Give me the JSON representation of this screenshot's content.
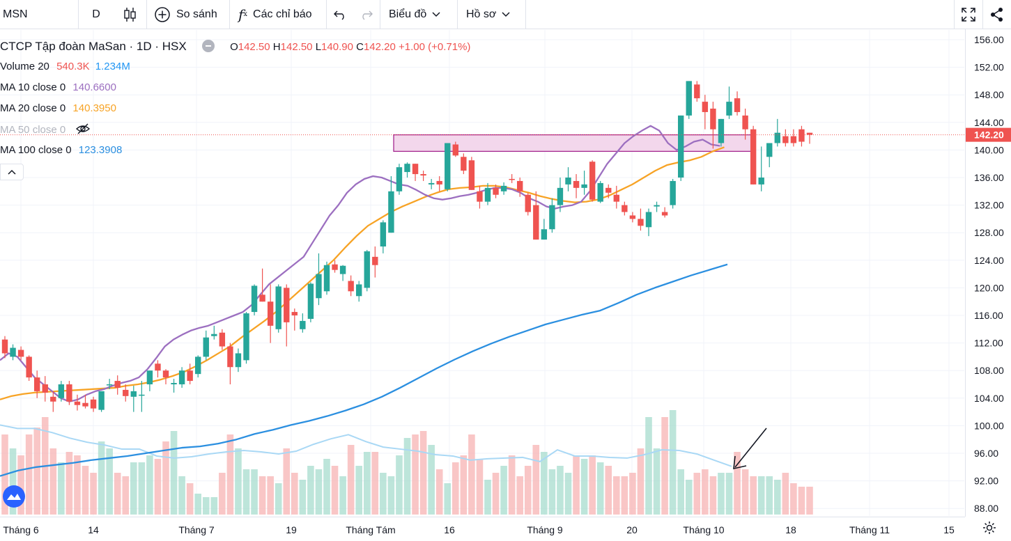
{
  "toolbar": {
    "symbol": "MSN",
    "interval": "D",
    "compare_label": "So sánh",
    "indicators_label": "Các chỉ báo",
    "chart_menu_label": "Biểu đồ",
    "profile_menu_label": "Hồ sơ"
  },
  "legend": {
    "title": "CTCP Tập đoàn MaSan · 1D · HSX",
    "ohlc": {
      "o_label": "O",
      "o": "142.50",
      "h_label": "H",
      "h": "142.50",
      "l_label": "L",
      "l": "140.90",
      "c_label": "C",
      "c": "142.20",
      "change": "+1.00 (+0.71%)"
    },
    "volume": {
      "label": "Volume 20",
      "v1": "540.3K",
      "v2": "1.234M"
    },
    "ma10": {
      "label": "MA 10 close 0",
      "value": "140.6600"
    },
    "ma20": {
      "label": "MA 20 close 0",
      "value": "140.3950"
    },
    "ma50": {
      "label": "MA 50 close 0"
    },
    "ma100": {
      "label": "MA 100 close 0",
      "value": "123.3908"
    }
  },
  "colors": {
    "up": "#26a69a",
    "down": "#ef5350",
    "ma10": "#9c6fc0",
    "ma20": "#f7a325",
    "ma100": "#2b8fe0",
    "vol_ma": "#a9d8f5",
    "zone": "#a3268f"
  },
  "current_price_label": "142.20",
  "chart_data": {
    "type": "candlestick",
    "y_axis": {
      "range": [
        87.5,
        157
      ],
      "ticks": [
        "156.00",
        "152.00",
        "148.00",
        "144.00",
        "140.00",
        "136.00",
        "132.00",
        "128.00",
        "124.00",
        "120.00",
        "116.00",
        "112.00",
        "108.00",
        "104.00",
        "100.00",
        "96.00",
        "92.00",
        "88.00"
      ]
    },
    "x_axis": {
      "ticks": [
        "Tháng 6",
        "14",
        "Tháng 7",
        "19",
        "Tháng Tám",
        "16",
        "Tháng 9",
        "20",
        "Tháng 10",
        "18",
        "Tháng 11",
        "15"
      ]
    },
    "candles": [
      {
        "o": 112.5,
        "h": 113.0,
        "l": 109.8,
        "c": 110.5
      },
      {
        "o": 110.0,
        "h": 111.8,
        "l": 109.5,
        "c": 111.3
      },
      {
        "o": 111.0,
        "h": 111.5,
        "l": 109.5,
        "c": 110.0
      },
      {
        "o": 110.0,
        "h": 110.2,
        "l": 106.5,
        "c": 107.0
      },
      {
        "o": 107.0,
        "h": 108.0,
        "l": 104.0,
        "c": 105.0
      },
      {
        "o": 106.0,
        "h": 107.2,
        "l": 103.5,
        "c": 104.8
      },
      {
        "o": 104.2,
        "h": 105.0,
        "l": 102.0,
        "c": 103.5
      },
      {
        "o": 104.0,
        "h": 106.5,
        "l": 103.5,
        "c": 106.0
      },
      {
        "o": 106.0,
        "h": 106.5,
        "l": 103.0,
        "c": 103.5
      },
      {
        "o": 103.5,
        "h": 104.5,
        "l": 102.2,
        "c": 103.0
      },
      {
        "o": 103.3,
        "h": 104.5,
        "l": 102.5,
        "c": 102.8
      },
      {
        "o": 103.8,
        "h": 104.2,
        "l": 102.0,
        "c": 102.5
      },
      {
        "o": 102.3,
        "h": 105.0,
        "l": 102.0,
        "c": 105.0
      },
      {
        "o": 106.0,
        "h": 106.8,
        "l": 105.3,
        "c": 106.0
      },
      {
        "o": 106.5,
        "h": 107.3,
        "l": 104.5,
        "c": 105.5
      },
      {
        "o": 105.2,
        "h": 106.0,
        "l": 103.5,
        "c": 104.3
      },
      {
        "o": 104.2,
        "h": 105.8,
        "l": 102.0,
        "c": 105.0
      },
      {
        "o": 104.5,
        "h": 106.5,
        "l": 102.0,
        "c": 104.5
      },
      {
        "o": 106.0,
        "h": 108.0,
        "l": 105.0,
        "c": 108.0
      },
      {
        "o": 109.0,
        "h": 109.5,
        "l": 107.0,
        "c": 108.0
      },
      {
        "o": 108.0,
        "h": 108.2,
        "l": 106.0,
        "c": 107.0
      },
      {
        "o": 106.0,
        "h": 106.8,
        "l": 104.8,
        "c": 106.2
      },
      {
        "o": 106.0,
        "h": 108.5,
        "l": 105.5,
        "c": 108.0
      },
      {
        "o": 108.0,
        "h": 109.0,
        "l": 106.0,
        "c": 106.5
      },
      {
        "o": 107.5,
        "h": 110.2,
        "l": 107.0,
        "c": 110.0
      },
      {
        "o": 110.0,
        "h": 113.8,
        "l": 109.5,
        "c": 112.8
      },
      {
        "o": 113.0,
        "h": 114.5,
        "l": 112.5,
        "c": 113.3
      },
      {
        "o": 113.5,
        "h": 114.0,
        "l": 111.0,
        "c": 111.5
      },
      {
        "o": 111.5,
        "h": 112.0,
        "l": 106.0,
        "c": 108.5
      },
      {
        "o": 108.5,
        "h": 111.2,
        "l": 107.8,
        "c": 110.5
      },
      {
        "o": 109.5,
        "h": 116.5,
        "l": 109.0,
        "c": 116.3
      },
      {
        "o": 116.5,
        "h": 120.5,
        "l": 116.0,
        "c": 120.3
      },
      {
        "o": 119.0,
        "h": 122.8,
        "l": 118.0,
        "c": 118.0
      },
      {
        "o": 118.0,
        "h": 120.5,
        "l": 112.0,
        "c": 114.5
      },
      {
        "o": 114.0,
        "h": 120.5,
        "l": 113.5,
        "c": 120.2
      },
      {
        "o": 120.0,
        "h": 120.5,
        "l": 111.5,
        "c": 115.0
      },
      {
        "o": 116.5,
        "h": 117.0,
        "l": 113.8,
        "c": 116.0
      },
      {
        "o": 114.0,
        "h": 116.3,
        "l": 113.5,
        "c": 115.2
      },
      {
        "o": 115.5,
        "h": 120.8,
        "l": 115.0,
        "c": 120.6
      },
      {
        "o": 118.5,
        "h": 125.0,
        "l": 117.5,
        "c": 122.0
      },
      {
        "o": 119.5,
        "h": 123.8,
        "l": 119.0,
        "c": 123.3
      },
      {
        "o": 123.4,
        "h": 124.0,
        "l": 122.2,
        "c": 122.6
      },
      {
        "o": 122.0,
        "h": 123.3,
        "l": 121.0,
        "c": 123.2
      },
      {
        "o": 121.0,
        "h": 121.8,
        "l": 118.8,
        "c": 119.5
      },
      {
        "o": 118.8,
        "h": 121.0,
        "l": 118.0,
        "c": 120.5
      },
      {
        "o": 120.0,
        "h": 125.5,
        "l": 119.5,
        "c": 125.3
      },
      {
        "o": 124.5,
        "h": 126.0,
        "l": 121.5,
        "c": 123.3
      },
      {
        "o": 126.0,
        "h": 129.8,
        "l": 125.0,
        "c": 129.5
      },
      {
        "o": 128.0,
        "h": 136.2,
        "l": 128.0,
        "c": 134.0
      },
      {
        "o": 134.0,
        "h": 138.0,
        "l": 133.5,
        "c": 137.5
      },
      {
        "o": 136.8,
        "h": 138.2,
        "l": 136.0,
        "c": 138.0
      },
      {
        "o": 138.0,
        "h": 138.0,
        "l": 135.5,
        "c": 136.5
      },
      {
        "o": 136.5,
        "h": 137.0,
        "l": 135.5,
        "c": 136.3
      },
      {
        "o": 135.0,
        "h": 135.8,
        "l": 134.3,
        "c": 135.2
      },
      {
        "o": 135.5,
        "h": 136.2,
        "l": 134.0,
        "c": 135.0
      },
      {
        "o": 134.3,
        "h": 141.0,
        "l": 134.0,
        "c": 141.0
      },
      {
        "o": 140.8,
        "h": 141.2,
        "l": 139.0,
        "c": 139.2
      },
      {
        "o": 139.0,
        "h": 139.5,
        "l": 136.5,
        "c": 137.0
      },
      {
        "o": 138.5,
        "h": 139.0,
        "l": 134.2,
        "c": 134.2
      },
      {
        "o": 134.0,
        "h": 134.8,
        "l": 131.5,
        "c": 132.5
      },
      {
        "o": 132.5,
        "h": 135.2,
        "l": 132.0,
        "c": 134.5
      },
      {
        "o": 134.5,
        "h": 135.0,
        "l": 133.0,
        "c": 133.5
      },
      {
        "o": 134.0,
        "h": 135.3,
        "l": 133.5,
        "c": 134.8
      },
      {
        "o": 135.8,
        "h": 136.5,
        "l": 135.2,
        "c": 135.7
      },
      {
        "o": 135.5,
        "h": 136.0,
        "l": 133.2,
        "c": 134.0
      },
      {
        "o": 133.5,
        "h": 133.8,
        "l": 130.5,
        "c": 131.0
      },
      {
        "o": 132.0,
        "h": 134.0,
        "l": 127.0,
        "c": 127.0
      },
      {
        "o": 127.0,
        "h": 130.0,
        "l": 127.0,
        "c": 128.5
      },
      {
        "o": 128.5,
        "h": 133.0,
        "l": 128.0,
        "c": 132.0
      },
      {
        "o": 132.0,
        "h": 136.0,
        "l": 131.0,
        "c": 134.5
      },
      {
        "o": 135.0,
        "h": 137.5,
        "l": 134.0,
        "c": 136.0
      },
      {
        "o": 135.5,
        "h": 136.5,
        "l": 133.0,
        "c": 134.5
      },
      {
        "o": 134.5,
        "h": 137.0,
        "l": 133.5,
        "c": 135.0
      },
      {
        "o": 138.3,
        "h": 138.5,
        "l": 132.5,
        "c": 132.8
      },
      {
        "o": 132.5,
        "h": 135.5,
        "l": 132.3,
        "c": 135.2
      },
      {
        "o": 134.5,
        "h": 135.0,
        "l": 133.0,
        "c": 133.8
      },
      {
        "o": 133.5,
        "h": 134.8,
        "l": 131.5,
        "c": 132.5
      },
      {
        "o": 132.0,
        "h": 132.5,
        "l": 130.5,
        "c": 131.0
      },
      {
        "o": 130.5,
        "h": 131.0,
        "l": 129.5,
        "c": 130.0
      },
      {
        "o": 130.0,
        "h": 131.5,
        "l": 128.3,
        "c": 129.0
      },
      {
        "o": 128.8,
        "h": 131.5,
        "l": 127.5,
        "c": 131.0
      },
      {
        "o": 131.8,
        "h": 132.5,
        "l": 131.0,
        "c": 132.0
      },
      {
        "o": 131.0,
        "h": 131.7,
        "l": 130.2,
        "c": 130.5
      },
      {
        "o": 132.0,
        "h": 135.8,
        "l": 131.5,
        "c": 135.5
      },
      {
        "o": 136.0,
        "h": 145.0,
        "l": 135.5,
        "c": 145.0
      },
      {
        "o": 145.0,
        "h": 150.0,
        "l": 144.5,
        "c": 150.0
      },
      {
        "o": 149.5,
        "h": 150.0,
        "l": 147.0,
        "c": 147.5
      },
      {
        "o": 147.0,
        "h": 148.0,
        "l": 143.0,
        "c": 145.5
      },
      {
        "o": 146.0,
        "h": 147.0,
        "l": 140.2,
        "c": 143.0
      },
      {
        "o": 141.0,
        "h": 144.5,
        "l": 140.5,
        "c": 144.5
      },
      {
        "o": 145.0,
        "h": 149.2,
        "l": 144.5,
        "c": 147.0
      },
      {
        "o": 147.5,
        "h": 148.5,
        "l": 145.0,
        "c": 145.5
      },
      {
        "o": 145.0,
        "h": 146.0,
        "l": 141.5,
        "c": 143.0
      },
      {
        "o": 143.0,
        "h": 143.5,
        "l": 135.0,
        "c": 135.0
      },
      {
        "o": 135.0,
        "h": 140.5,
        "l": 134.0,
        "c": 136.0
      },
      {
        "o": 139.0,
        "h": 141.0,
        "l": 137.5,
        "c": 141.0
      },
      {
        "o": 141.0,
        "h": 144.5,
        "l": 140.5,
        "c": 142.5
      },
      {
        "o": 142.0,
        "h": 143.0,
        "l": 140.5,
        "c": 141.0
      },
      {
        "o": 142.0,
        "h": 143.0,
        "l": 140.5,
        "c": 141.0
      },
      {
        "o": 143.0,
        "h": 143.5,
        "l": 140.5,
        "c": 141.2
      },
      {
        "o": 142.5,
        "h": 142.5,
        "l": 140.9,
        "c": 142.2
      }
    ],
    "volume_ma_note": "",
    "ma10": [
      109.5,
      110.5,
      110.0,
      108.5,
      107.0,
      106.0,
      105.0,
      104.0,
      103.5,
      103.8,
      104.5,
      105.0,
      105.3,
      105.8,
      106.2,
      106.5,
      107.0,
      108.2,
      109.8,
      111.5,
      112.5,
      113.2,
      113.8,
      114.2,
      114.5,
      115.0,
      115.5,
      116.0,
      116.5,
      117.5,
      119.0,
      120.5,
      121.5,
      122.5,
      123.5,
      124.5,
      126.5,
      128.5,
      130.5,
      132.0,
      133.8,
      135.0,
      135.8,
      136.2,
      136.0,
      135.5,
      135.0,
      134.8,
      134.2,
      133.5,
      133.0,
      132.8,
      133.0,
      133.3,
      133.5,
      133.8,
      134.2,
      134.5,
      134.5,
      134.3,
      133.8,
      133.0,
      132.5,
      131.8,
      131.5,
      131.8,
      132.0,
      132.5,
      134.0,
      136.0,
      138.0,
      139.5,
      141.0,
      142.0,
      142.8,
      143.5,
      142.8,
      141.0,
      140.0,
      140.5,
      141.2,
      141.5,
      140.8,
      140.6
    ],
    "ma20": [
      103.8,
      104.3,
      104.6,
      104.8,
      104.9,
      105.0,
      105.1,
      105.2,
      105.3,
      105.4,
      105.5,
      105.8,
      106.0,
      106.3,
      106.7,
      107.2,
      107.8,
      108.6,
      109.5,
      110.5,
      111.5,
      112.8,
      114.0,
      115.2,
      116.5,
      118.0,
      119.5,
      121.0,
      122.5,
      124.0,
      125.8,
      127.5,
      129.0,
      130.0,
      131.0,
      131.8,
      132.5,
      133.2,
      133.8,
      134.3,
      134.5,
      134.6,
      134.8,
      134.8,
      134.6,
      134.2,
      133.8,
      133.3,
      132.9,
      132.6,
      132.4,
      132.5,
      132.8,
      133.4,
      134.2,
      135.0,
      136.0,
      137.0,
      137.8,
      138.2,
      138.5,
      139.0,
      139.8,
      140.4
    ],
    "ma100": [
      92.7,
      93.5,
      94.0,
      94.3,
      94.6,
      95.0,
      95.3,
      95.6,
      96.0,
      96.4,
      96.8,
      97.0,
      97.4,
      98.0,
      98.8,
      99.4,
      100.1,
      100.7,
      101.4,
      102.2,
      103.1,
      104.2,
      105.5,
      106.9,
      108.3,
      109.6,
      110.8,
      111.9,
      112.9,
      113.8,
      114.7,
      115.4,
      116.1,
      116.7,
      117.8,
      119.0,
      120.0,
      120.9,
      121.8,
      122.6,
      123.4
    ],
    "volume_ma": [
      100.1,
      99.6,
      99.6,
      99.0,
      98.2,
      97.6,
      97.2,
      96.6,
      96.6,
      95.6,
      95.3,
      95.5,
      95.9,
      96.2,
      96.4,
      96.2,
      95.9,
      96.3,
      97.3,
      98.1,
      98.7,
      97.7,
      96.9,
      96.6,
      96.3,
      95.8,
      95.6,
      95.0,
      95.2,
      95.3,
      95.4,
      94.8,
      96.5,
      95.6,
      95.6,
      95.4,
      95.3,
      95.8,
      96.5,
      96.4,
      95.9,
      95.0,
      94.1
    ]
  }
}
